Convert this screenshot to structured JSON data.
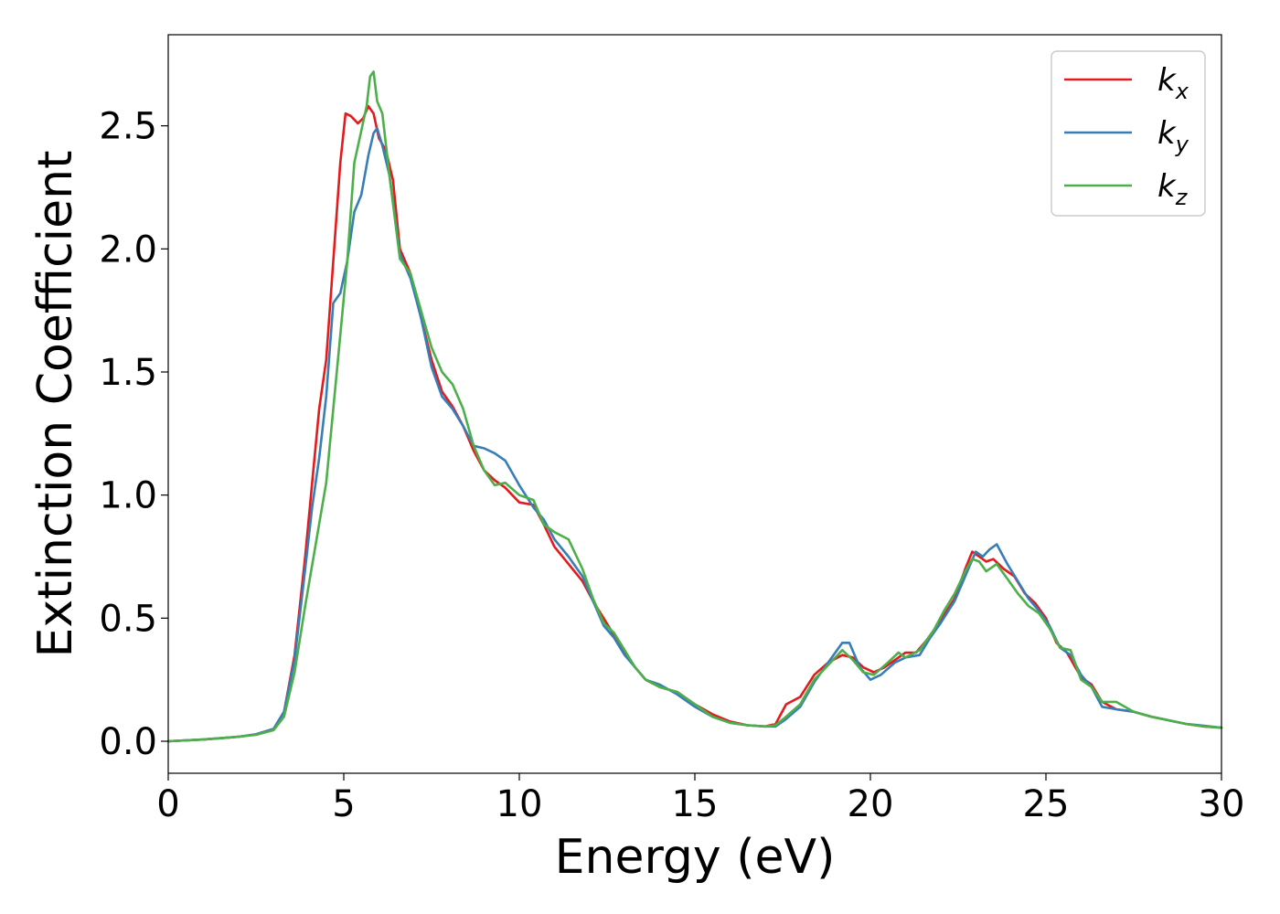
{
  "chart_data": {
    "type": "line",
    "title": "",
    "xlabel": "Energy (eV)",
    "ylabel": "Extinction Coefficient",
    "xlim": [
      0,
      30
    ],
    "ylim": [
      -0.13,
      2.87
    ],
    "xticks": [
      0,
      5,
      10,
      15,
      20,
      25,
      30
    ],
    "xtick_labels": [
      "0",
      "5",
      "10",
      "15",
      "20",
      "25",
      "30"
    ],
    "yticks": [
      0.0,
      0.5,
      1.0,
      1.5,
      2.0,
      2.5
    ],
    "ytick_labels": [
      "0.0",
      "0.5",
      "1.0",
      "1.5",
      "2.0",
      "2.5"
    ],
    "grid": false,
    "legend_position": "top-right",
    "series": [
      {
        "name": "kx",
        "base": "k",
        "subscript": "x",
        "color": "#e41a1c",
        "points": [
          [
            0,
            0
          ],
          [
            1,
            0.007
          ],
          [
            2,
            0.018
          ],
          [
            2.5,
            0.028
          ],
          [
            3,
            0.05
          ],
          [
            3.3,
            0.12
          ],
          [
            3.6,
            0.35
          ],
          [
            3.9,
            0.75
          ],
          [
            4.1,
            1.05
          ],
          [
            4.3,
            1.35
          ],
          [
            4.5,
            1.55
          ],
          [
            4.7,
            1.95
          ],
          [
            4.9,
            2.35
          ],
          [
            5.05,
            2.55
          ],
          [
            5.2,
            2.54
          ],
          [
            5.4,
            2.51
          ],
          [
            5.55,
            2.53
          ],
          [
            5.7,
            2.58
          ],
          [
            5.85,
            2.55
          ],
          [
            6.0,
            2.45
          ],
          [
            6.2,
            2.4
          ],
          [
            6.4,
            2.28
          ],
          [
            6.6,
            2.0
          ],
          [
            6.9,
            1.9
          ],
          [
            7.2,
            1.72
          ],
          [
            7.5,
            1.55
          ],
          [
            7.8,
            1.42
          ],
          [
            8.1,
            1.36
          ],
          [
            8.4,
            1.28
          ],
          [
            8.7,
            1.18
          ],
          [
            9.0,
            1.1
          ],
          [
            9.3,
            1.06
          ],
          [
            9.6,
            1.03
          ],
          [
            10.0,
            0.97
          ],
          [
            10.4,
            0.96
          ],
          [
            10.7,
            0.88
          ],
          [
            11.0,
            0.79
          ],
          [
            11.4,
            0.72
          ],
          [
            11.8,
            0.65
          ],
          [
            12.1,
            0.57
          ],
          [
            12.4,
            0.5
          ],
          [
            12.7,
            0.43
          ],
          [
            13.0,
            0.36
          ],
          [
            13.3,
            0.3
          ],
          [
            13.6,
            0.25
          ],
          [
            14.0,
            0.22
          ],
          [
            14.5,
            0.2
          ],
          [
            15.0,
            0.15
          ],
          [
            15.5,
            0.11
          ],
          [
            16.0,
            0.08
          ],
          [
            16.5,
            0.065
          ],
          [
            17.0,
            0.06
          ],
          [
            17.3,
            0.07
          ],
          [
            17.6,
            0.15
          ],
          [
            18.0,
            0.18
          ],
          [
            18.4,
            0.27
          ],
          [
            18.8,
            0.32
          ],
          [
            19.2,
            0.35
          ],
          [
            19.5,
            0.34
          ],
          [
            19.8,
            0.3
          ],
          [
            20.1,
            0.28
          ],
          [
            20.4,
            0.3
          ],
          [
            20.7,
            0.33
          ],
          [
            21.0,
            0.36
          ],
          [
            21.3,
            0.36
          ],
          [
            21.6,
            0.41
          ],
          [
            22.0,
            0.49
          ],
          [
            22.4,
            0.58
          ],
          [
            22.7,
            0.7
          ],
          [
            22.9,
            0.77
          ],
          [
            23.1,
            0.75
          ],
          [
            23.3,
            0.73
          ],
          [
            23.5,
            0.74
          ],
          [
            23.8,
            0.7
          ],
          [
            24.1,
            0.67
          ],
          [
            24.4,
            0.6
          ],
          [
            24.7,
            0.56
          ],
          [
            25.0,
            0.5
          ],
          [
            25.3,
            0.4
          ],
          [
            25.6,
            0.36
          ],
          [
            26.0,
            0.26
          ],
          [
            26.3,
            0.23
          ],
          [
            26.6,
            0.16
          ],
          [
            27.0,
            0.13
          ],
          [
            27.5,
            0.12
          ],
          [
            28.0,
            0.1
          ],
          [
            28.5,
            0.085
          ],
          [
            29.0,
            0.07
          ],
          [
            29.5,
            0.06
          ],
          [
            30.0,
            0.055
          ]
        ]
      },
      {
        "name": "ky",
        "base": "k",
        "subscript": "y",
        "color": "#377eb8",
        "points": [
          [
            0,
            0
          ],
          [
            1,
            0.007
          ],
          [
            2,
            0.018
          ],
          [
            2.5,
            0.028
          ],
          [
            3,
            0.05
          ],
          [
            3.3,
            0.12
          ],
          [
            3.6,
            0.33
          ],
          [
            3.9,
            0.7
          ],
          [
            4.1,
            0.95
          ],
          [
            4.3,
            1.15
          ],
          [
            4.5,
            1.4
          ],
          [
            4.7,
            1.78
          ],
          [
            4.9,
            1.82
          ],
          [
            5.1,
            1.95
          ],
          [
            5.3,
            2.15
          ],
          [
            5.5,
            2.22
          ],
          [
            5.7,
            2.38
          ],
          [
            5.85,
            2.47
          ],
          [
            5.95,
            2.49
          ],
          [
            6.1,
            2.42
          ],
          [
            6.3,
            2.3
          ],
          [
            6.6,
            1.98
          ],
          [
            6.9,
            1.88
          ],
          [
            7.2,
            1.72
          ],
          [
            7.5,
            1.52
          ],
          [
            7.8,
            1.4
          ],
          [
            8.1,
            1.35
          ],
          [
            8.4,
            1.28
          ],
          [
            8.7,
            1.2
          ],
          [
            9.0,
            1.19
          ],
          [
            9.3,
            1.17
          ],
          [
            9.6,
            1.14
          ],
          [
            10.0,
            1.04
          ],
          [
            10.4,
            0.95
          ],
          [
            10.7,
            0.9
          ],
          [
            11.0,
            0.82
          ],
          [
            11.4,
            0.75
          ],
          [
            11.8,
            0.67
          ],
          [
            12.1,
            0.57
          ],
          [
            12.4,
            0.47
          ],
          [
            12.7,
            0.42
          ],
          [
            13.0,
            0.35
          ],
          [
            13.3,
            0.3
          ],
          [
            13.6,
            0.25
          ],
          [
            14.0,
            0.23
          ],
          [
            14.5,
            0.19
          ],
          [
            15.0,
            0.14
          ],
          [
            15.5,
            0.1
          ],
          [
            16.0,
            0.075
          ],
          [
            16.5,
            0.065
          ],
          [
            17.0,
            0.06
          ],
          [
            17.3,
            0.06
          ],
          [
            17.6,
            0.09
          ],
          [
            18.0,
            0.14
          ],
          [
            18.4,
            0.24
          ],
          [
            18.8,
            0.32
          ],
          [
            19.2,
            0.4
          ],
          [
            19.4,
            0.4
          ],
          [
            19.7,
            0.3
          ],
          [
            20.0,
            0.25
          ],
          [
            20.3,
            0.27
          ],
          [
            20.7,
            0.32
          ],
          [
            21.0,
            0.34
          ],
          [
            21.4,
            0.35
          ],
          [
            21.7,
            0.42
          ],
          [
            22.0,
            0.48
          ],
          [
            22.4,
            0.57
          ],
          [
            22.7,
            0.67
          ],
          [
            23.0,
            0.77
          ],
          [
            23.2,
            0.75
          ],
          [
            23.4,
            0.78
          ],
          [
            23.6,
            0.8
          ],
          [
            23.9,
            0.72
          ],
          [
            24.2,
            0.65
          ],
          [
            24.5,
            0.58
          ],
          [
            24.8,
            0.53
          ],
          [
            25.1,
            0.47
          ],
          [
            25.4,
            0.38
          ],
          [
            25.7,
            0.35
          ],
          [
            26.0,
            0.27
          ],
          [
            26.3,
            0.22
          ],
          [
            26.6,
            0.14
          ],
          [
            27.0,
            0.13
          ],
          [
            27.5,
            0.12
          ],
          [
            28.0,
            0.1
          ],
          [
            28.5,
            0.085
          ],
          [
            29.0,
            0.07
          ],
          [
            29.5,
            0.063
          ],
          [
            30.0,
            0.055
          ]
        ]
      },
      {
        "name": "kz",
        "base": "k",
        "subscript": "z",
        "color": "#4daf4a",
        "points": [
          [
            0,
            0
          ],
          [
            1,
            0.007
          ],
          [
            2,
            0.018
          ],
          [
            2.5,
            0.026
          ],
          [
            3,
            0.045
          ],
          [
            3.3,
            0.1
          ],
          [
            3.6,
            0.28
          ],
          [
            3.9,
            0.55
          ],
          [
            4.2,
            0.8
          ],
          [
            4.5,
            1.05
          ],
          [
            4.7,
            1.35
          ],
          [
            4.9,
            1.65
          ],
          [
            5.1,
            1.95
          ],
          [
            5.3,
            2.35
          ],
          [
            5.5,
            2.48
          ],
          [
            5.65,
            2.58
          ],
          [
            5.75,
            2.7
          ],
          [
            5.85,
            2.72
          ],
          [
            5.95,
            2.6
          ],
          [
            6.1,
            2.55
          ],
          [
            6.3,
            2.3
          ],
          [
            6.6,
            1.96
          ],
          [
            6.9,
            1.9
          ],
          [
            7.2,
            1.75
          ],
          [
            7.5,
            1.6
          ],
          [
            7.8,
            1.5
          ],
          [
            8.1,
            1.45
          ],
          [
            8.4,
            1.35
          ],
          [
            8.7,
            1.2
          ],
          [
            9.0,
            1.1
          ],
          [
            9.3,
            1.04
          ],
          [
            9.6,
            1.05
          ],
          [
            10.0,
            1.0
          ],
          [
            10.4,
            0.98
          ],
          [
            10.7,
            0.88
          ],
          [
            11.0,
            0.85
          ],
          [
            11.4,
            0.82
          ],
          [
            11.8,
            0.7
          ],
          [
            12.1,
            0.58
          ],
          [
            12.4,
            0.48
          ],
          [
            12.7,
            0.44
          ],
          [
            13.0,
            0.37
          ],
          [
            13.3,
            0.3
          ],
          [
            13.6,
            0.25
          ],
          [
            14.0,
            0.22
          ],
          [
            14.5,
            0.2
          ],
          [
            15.0,
            0.15
          ],
          [
            15.5,
            0.1
          ],
          [
            16.0,
            0.075
          ],
          [
            16.5,
            0.065
          ],
          [
            17.0,
            0.06
          ],
          [
            17.3,
            0.065
          ],
          [
            17.6,
            0.1
          ],
          [
            18.0,
            0.15
          ],
          [
            18.4,
            0.25
          ],
          [
            18.8,
            0.31
          ],
          [
            19.2,
            0.37
          ],
          [
            19.5,
            0.33
          ],
          [
            19.8,
            0.28
          ],
          [
            20.1,
            0.27
          ],
          [
            20.5,
            0.32
          ],
          [
            20.8,
            0.36
          ],
          [
            21.0,
            0.34
          ],
          [
            21.4,
            0.37
          ],
          [
            21.8,
            0.45
          ],
          [
            22.1,
            0.53
          ],
          [
            22.4,
            0.6
          ],
          [
            22.7,
            0.69
          ],
          [
            22.9,
            0.74
          ],
          [
            23.1,
            0.73
          ],
          [
            23.3,
            0.69
          ],
          [
            23.6,
            0.72
          ],
          [
            23.9,
            0.66
          ],
          [
            24.2,
            0.6
          ],
          [
            24.5,
            0.55
          ],
          [
            24.8,
            0.52
          ],
          [
            25.1,
            0.46
          ],
          [
            25.4,
            0.38
          ],
          [
            25.7,
            0.37
          ],
          [
            26.0,
            0.25
          ],
          [
            26.3,
            0.22
          ],
          [
            26.6,
            0.16
          ],
          [
            27.0,
            0.16
          ],
          [
            27.5,
            0.12
          ],
          [
            28.0,
            0.1
          ],
          [
            28.5,
            0.085
          ],
          [
            29.0,
            0.07
          ],
          [
            29.5,
            0.06
          ],
          [
            30.0,
            0.055
          ]
        ]
      }
    ]
  }
}
